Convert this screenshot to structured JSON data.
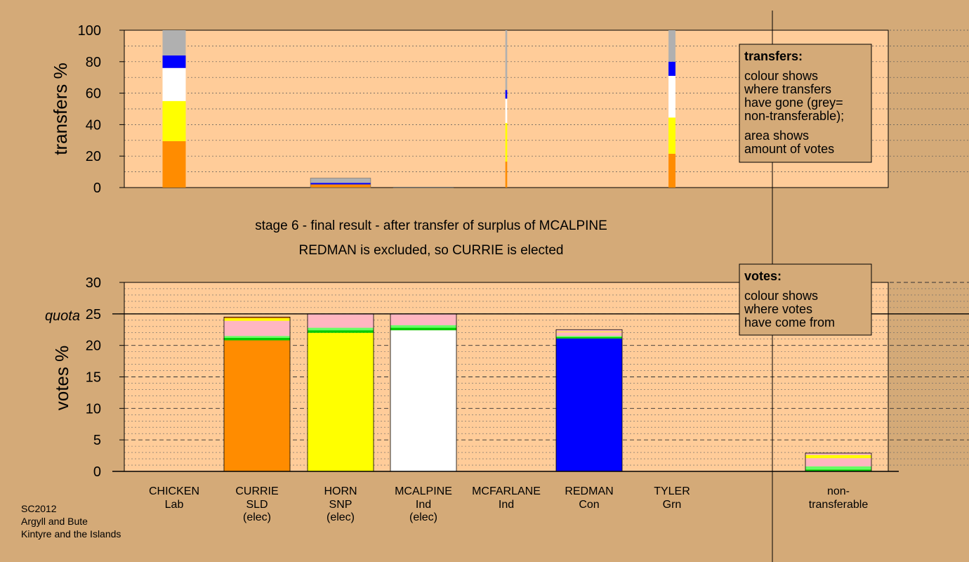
{
  "chart_data": [
    {
      "type": "bar",
      "ylabel": "transfers %",
      "ylim": [
        0,
        100
      ],
      "yticks": [
        "0",
        "20",
        "40",
        "60",
        "80",
        "100"
      ],
      "stacked": true,
      "bars": [
        {
          "candidate": "CHICKEN",
          "width": 1.0,
          "segments": [
            {
              "colour": "#ff8c00",
              "value": 29.5
            },
            {
              "colour": "#ffff00",
              "value": 25.5
            },
            {
              "colour": "#ffffff",
              "value": 21
            },
            {
              "colour": "#0000ff",
              "value": 8
            },
            {
              "colour": "#b0b0b0",
              "value": 16
            }
          ]
        },
        {
          "candidate": "CURRIE",
          "width": 2.6,
          "segments": [
            {
              "colour": "#ff8c00",
              "value": 2
            },
            {
              "colour": "#0000ff",
              "value": 1
            },
            {
              "colour": "#b0b0b0",
              "value": 3
            }
          ]
        },
        {
          "candidate": "HORN",
          "width": 2.6,
          "segments": [
            {
              "colour": "#b0b0b0",
              "value": 0.3
            }
          ]
        },
        {
          "candidate": "MCALPINE",
          "width": 0.08,
          "segments": [
            {
              "colour": "#ff8c00",
              "value": 16.5
            },
            {
              "colour": "#ffff00",
              "value": 24.5
            },
            {
              "colour": "#ffffff",
              "value": 15.5
            },
            {
              "colour": "#0000ff",
              "value": 5.5
            },
            {
              "colour": "#b0b0b0",
              "value": 38
            }
          ]
        },
        {
          "candidate": "TYLER",
          "width": 0.3,
          "segments": [
            {
              "colour": "#ff8c00",
              "value": 21.5
            },
            {
              "colour": "#ffff00",
              "value": 23
            },
            {
              "colour": "#ffffff",
              "value": 26.5
            },
            {
              "colour": "#0000ff",
              "value": 9
            },
            {
              "colour": "#b0b0b0",
              "value": 20
            }
          ]
        }
      ]
    },
    {
      "type": "bar",
      "ylabel": "votes %",
      "ylim": [
        0,
        30
      ],
      "yticks": [
        "0",
        "5",
        "10",
        "15",
        "20",
        "25",
        "30"
      ],
      "quota": 25,
      "quota_label": "quota",
      "stacked": true,
      "bars": [
        {
          "candidate": "CURRIE",
          "segments": [
            {
              "colour": "#ff8c00",
              "value": 20.8
            },
            {
              "colour": "#00cc00",
              "value": 0.4
            },
            {
              "colour": "#66ff66",
              "value": 0.3
            },
            {
              "colour": "#ffb6c1",
              "value": 2.4
            },
            {
              "colour": "#ffff00",
              "value": 0.4
            },
            {
              "colour": "#ff8c00",
              "value": 0.2
            }
          ]
        },
        {
          "candidate": "HORN",
          "segments": [
            {
              "colour": "#ffff00",
              "value": 22
            },
            {
              "colour": "#00cc00",
              "value": 0.4
            },
            {
              "colour": "#66ff66",
              "value": 0.4
            },
            {
              "colour": "#ffb6c1",
              "value": 2.2
            }
          ]
        },
        {
          "candidate": "MCALPINE",
          "segments": [
            {
              "colour": "#ffffff",
              "value": 22.4
            },
            {
              "colour": "#00cc00",
              "value": 0.4
            },
            {
              "colour": "#66ff66",
              "value": 0.4
            },
            {
              "colour": "#ffb6c1",
              "value": 1.8
            }
          ]
        },
        {
          "candidate": "REDMAN",
          "segments": [
            {
              "colour": "#0000ff",
              "value": 21.1
            },
            {
              "colour": "#00cc00",
              "value": 0.2
            },
            {
              "colour": "#66ff66",
              "value": 0.2
            },
            {
              "colour": "#ffb6c1",
              "value": 0.6
            },
            {
              "colour": "#ffff00",
              "value": 0.1
            },
            {
              "colour": "#ffb6c1",
              "value": 0.3
            }
          ]
        },
        {
          "candidate": "non-transferable",
          "segments": [
            {
              "colour": "#00cc00",
              "value": 0.3
            },
            {
              "colour": "#66ff66",
              "value": 0.5
            },
            {
              "colour": "#ffb6c1",
              "value": 1.3
            },
            {
              "colour": "#ffff00",
              "value": 0.5
            },
            {
              "colour": "#ffb6c1",
              "value": 0.3
            }
          ]
        }
      ]
    }
  ],
  "stage_title": "stage 6 - final result - after transfer of surplus of MCALPINE",
  "stage_subtitle": "REDMAN is excluded, so CURRIE is elected",
  "candidates": [
    {
      "name": "CHICKEN",
      "party": "Lab",
      "status": ""
    },
    {
      "name": "CURRIE",
      "party": "SLD",
      "status": "(elec)"
    },
    {
      "name": "HORN",
      "party": "SNP",
      "status": "(elec)"
    },
    {
      "name": "MCALPINE",
      "party": "Ind",
      "status": "(elec)"
    },
    {
      "name": "MCFARLANE",
      "party": "Ind",
      "status": ""
    },
    {
      "name": "REDMAN",
      "party": "Con",
      "status": ""
    },
    {
      "name": "TYLER",
      "party": "Grn",
      "status": ""
    }
  ],
  "nontransferable_label": [
    "non-",
    "transferable"
  ],
  "legend_transfers": {
    "title": "transfers:",
    "lines1": [
      "colour shows",
      "where transfers",
      "have gone (grey=",
      "non-transferable);"
    ],
    "lines2": [
      "area shows",
      "amount of votes"
    ]
  },
  "legend_votes": {
    "title": "votes:",
    "lines": [
      "colour shows",
      "where votes",
      "have come from"
    ]
  },
  "footer": [
    "SC2012",
    "Argyll and Bute",
    "Kintyre and the Islands"
  ],
  "colors": {
    "background": "#d4aa78",
    "plot_background": "#ffcc99",
    "legend_background": "#d4aa78"
  }
}
